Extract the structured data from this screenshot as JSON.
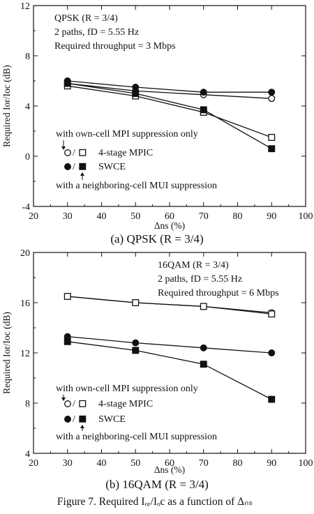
{
  "figure_caption": "Figure 7.  Required Iₒᵣ/Iₒc as a function of Δₙₛ",
  "legend_texts": {
    "own_cell": "with own-cell MPI suppression only",
    "mpic": "4-stage MPIC",
    "swce": "SWCE",
    "neighbor": "with a neighboring-cell MUI suppression",
    "slash": "/"
  },
  "chart_data": [
    {
      "type": "line",
      "subtitle": "(a)  QPSK (R = 3/4)",
      "annotation": [
        "QPSK (R = 3/4)",
        "2 paths, fD = 5.55 Hz",
        "Required throughput = 3 Mbps"
      ],
      "xlabel": "Δns (%)",
      "ylabel": "Required Ior/Ioc (dB)",
      "xlim": [
        20,
        100
      ],
      "ylim": [
        -4,
        12
      ],
      "xticks": [
        20,
        30,
        40,
        50,
        60,
        70,
        80,
        90,
        100
      ],
      "yticks": [
        -4,
        0,
        4,
        8,
        12
      ],
      "x": [
        30,
        50,
        70,
        90
      ],
      "series": [
        {
          "name": "4-stage MPIC",
          "suppression": "own-cell MPI suppression only",
          "marker": "open-circle",
          "values": [
            5.8,
            5.2,
            4.9,
            4.6
          ]
        },
        {
          "name": "4-stage MPIC",
          "suppression": "neighboring-cell MUI suppression",
          "marker": "open-square",
          "values": [
            5.6,
            4.8,
            3.5,
            1.5
          ]
        },
        {
          "name": "SWCE",
          "suppression": "own-cell MPI suppression only",
          "marker": "filled-circle",
          "values": [
            6.0,
            5.5,
            5.1,
            5.1
          ]
        },
        {
          "name": "SWCE",
          "suppression": "neighboring-cell MUI suppression",
          "marker": "filled-square",
          "values": [
            5.8,
            5.0,
            3.7,
            0.6
          ]
        }
      ]
    },
    {
      "type": "line",
      "subtitle": "(b)  16QAM (R = 3/4)",
      "annotation": [
        "16QAM (R = 3/4)",
        "2 paths, fD = 5.55 Hz",
        "Required throughput = 6 Mbps"
      ],
      "xlabel": "Δns (%)",
      "ylabel": "Required Ior/Ioc (dB)",
      "xlim": [
        20,
        100
      ],
      "ylim": [
        4,
        20
      ],
      "xticks": [
        20,
        30,
        40,
        50,
        60,
        70,
        80,
        90,
        100
      ],
      "yticks": [
        4,
        8,
        12,
        16,
        20
      ],
      "x": [
        30,
        50,
        70,
        90
      ],
      "series": [
        {
          "name": "4-stage MPIC",
          "suppression": "own-cell MPI suppression only",
          "marker": "open-circle",
          "values": [
            16.5,
            16.0,
            15.7,
            15.2
          ]
        },
        {
          "name": "4-stage MPIC",
          "suppression": "neighboring-cell MUI suppression",
          "marker": "open-square",
          "values": [
            16.5,
            16.0,
            15.7,
            15.1
          ]
        },
        {
          "name": "SWCE",
          "suppression": "own-cell MPI suppression only",
          "marker": "filled-circle",
          "values": [
            13.3,
            12.8,
            12.4,
            12.0
          ]
        },
        {
          "name": "SWCE",
          "suppression": "neighboring-cell MUI suppression",
          "marker": "filled-square",
          "values": [
            12.9,
            12.2,
            11.1,
            8.3
          ]
        }
      ]
    }
  ]
}
